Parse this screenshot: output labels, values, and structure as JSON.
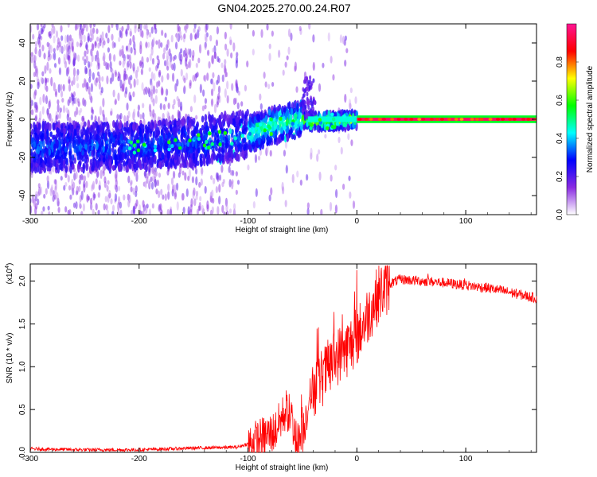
{
  "title": "GN04.2025.270.00.24.R07",
  "chart_data": [
    {
      "type": "heatmap",
      "xlabel": "Height of straight line (km)",
      "ylabel": "Frequency (Hz)",
      "xlim": [
        -300,
        165
      ],
      "ylim": [
        -50,
        50
      ],
      "xticks": [
        "-300",
        "-200",
        "-100",
        "0",
        "100"
      ],
      "yticks": [
        "-40",
        "-20",
        "0",
        "20",
        "40"
      ],
      "colorbar": {
        "label": "Normalized spectral amplitude",
        "range": [
          0,
          1
        ],
        "ticks": [
          "0.0",
          "0.2",
          "0.4",
          "0.6",
          "0.8"
        ],
        "colors": [
          "#ffffff",
          "#8a2be2",
          "#0000ff",
          "#00ffff",
          "#00ff00",
          "#ffff00",
          "#ff0000",
          "#ff1493"
        ]
      },
      "ridge": [
        {
          "x": -290,
          "y": -15
        },
        {
          "x": -200,
          "y": -14
        },
        {
          "x": -150,
          "y": -12
        },
        {
          "x": -100,
          "y": -8
        },
        {
          "x": -70,
          "y": -2
        },
        {
          "x": -50,
          "y": 0
        },
        {
          "x": -40,
          "y": -1
        },
        {
          "x": -20,
          "y": -1
        },
        {
          "x": 0,
          "y": 0
        },
        {
          "x": 165,
          "y": 0
        }
      ]
    },
    {
      "type": "line",
      "xlabel": "Height of straight line (km)",
      "ylabel": "SNR (10 * v/v)",
      "yscale_label": "(x10",
      "yscale_exp": "4",
      "xlim": [
        -300,
        165
      ],
      "ylim": [
        0,
        2.2
      ],
      "xticks": [
        "-300",
        "-200",
        "-100",
        "0",
        "100"
      ],
      "yticks": [
        "0.0",
        "0.5",
        "1.0",
        "1.5",
        "2.0"
      ],
      "color": "#ff0000",
      "series": [
        {
          "values": [
            [
              -300,
              0.04
            ],
            [
              -250,
              0.03
            ],
            [
              -200,
              0.03
            ],
            [
              -150,
              0.05
            ],
            [
              -110,
              0.06
            ],
            [
              -95,
              0.12
            ],
            [
              -85,
              0.18
            ],
            [
              -75,
              0.25
            ],
            [
              -65,
              0.5
            ],
            [
              -60,
              0.4
            ],
            [
              -55,
              0.1
            ],
            [
              -50,
              0.2
            ],
            [
              -45,
              0.55
            ],
            [
              -40,
              0.75
            ],
            [
              -30,
              0.9
            ],
            [
              -20,
              1.1
            ],
            [
              -10,
              1.2
            ],
            [
              0,
              1.35
            ],
            [
              10,
              1.6
            ],
            [
              20,
              1.85
            ],
            [
              30,
              1.97
            ],
            [
              40,
              2.02
            ],
            [
              60,
              2.0
            ],
            [
              80,
              1.98
            ],
            [
              100,
              1.95
            ],
            [
              120,
              1.92
            ],
            [
              140,
              1.87
            ],
            [
              165,
              1.8
            ]
          ]
        }
      ]
    }
  ]
}
